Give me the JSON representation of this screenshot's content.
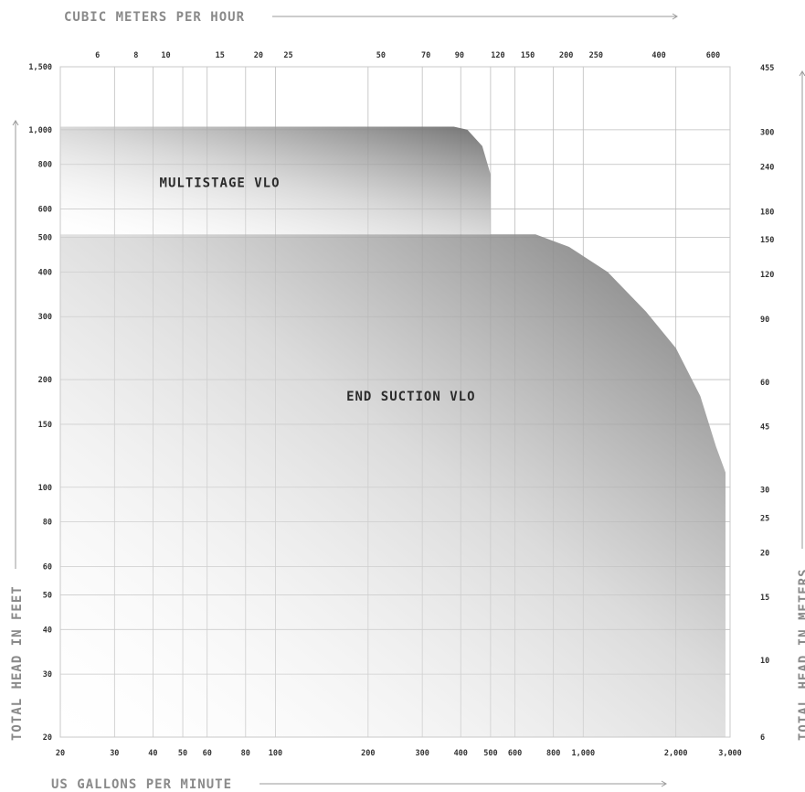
{
  "chart_data": {
    "type": "area",
    "x_scale": "log",
    "y_scale": "log",
    "grid": true,
    "axes": {
      "bottom": {
        "label": "US GALLONS PER MINUTE",
        "ticks": [
          {
            "value": 20,
            "label": "20"
          },
          {
            "value": 30,
            "label": "30"
          },
          {
            "value": 40,
            "label": "40"
          },
          {
            "value": 50,
            "label": "50"
          },
          {
            "value": 60,
            "label": "60"
          },
          {
            "value": 80,
            "label": "80"
          },
          {
            "value": 100,
            "label": "100"
          },
          {
            "value": 200,
            "label": "200"
          },
          {
            "value": 300,
            "label": "300"
          },
          {
            "value": 400,
            "label": "400"
          },
          {
            "value": 500,
            "label": "500"
          },
          {
            "value": 600,
            "label": "600"
          },
          {
            "value": 800,
            "label": "800"
          },
          {
            "value": 1000,
            "label": "1,000"
          },
          {
            "value": 2000,
            "label": "2,000"
          },
          {
            "value": 3000,
            "label": "3,000"
          }
        ]
      },
      "top": {
        "label": "CUBIC METERS PER HOUR",
        "ticks": [
          {
            "value": 6,
            "label": "6"
          },
          {
            "value": 8,
            "label": "8"
          },
          {
            "value": 10,
            "label": "10"
          },
          {
            "value": 15,
            "label": "15"
          },
          {
            "value": 20,
            "label": "20"
          },
          {
            "value": 25,
            "label": "25"
          },
          {
            "value": 50,
            "label": "50"
          },
          {
            "value": 70,
            "label": "70"
          },
          {
            "value": 90,
            "label": "90"
          },
          {
            "value": 120,
            "label": "120"
          },
          {
            "value": 150,
            "label": "150"
          },
          {
            "value": 200,
            "label": "200"
          },
          {
            "value": 250,
            "label": "250"
          },
          {
            "value": 400,
            "label": "400"
          },
          {
            "value": 600,
            "label": "600"
          }
        ]
      },
      "left": {
        "label": "TOTAL HEAD IN FEET",
        "ticks": [
          {
            "value": 20,
            "label": "20"
          },
          {
            "value": 30,
            "label": "30"
          },
          {
            "value": 40,
            "label": "40"
          },
          {
            "value": 50,
            "label": "50"
          },
          {
            "value": 60,
            "label": "60"
          },
          {
            "value": 80,
            "label": "80"
          },
          {
            "value": 100,
            "label": "100"
          },
          {
            "value": 150,
            "label": "150"
          },
          {
            "value": 200,
            "label": "200"
          },
          {
            "value": 300,
            "label": "300"
          },
          {
            "value": 400,
            "label": "400"
          },
          {
            "value": 500,
            "label": "500"
          },
          {
            "value": 600,
            "label": "600"
          },
          {
            "value": 800,
            "label": "800"
          },
          {
            "value": 1000,
            "label": "1,000"
          },
          {
            "value": 1500,
            "label": "1,500"
          }
        ]
      },
      "right": {
        "label": "TOTAL HEAD IN METERS",
        "ticks": [
          {
            "value": 6,
            "label": "6"
          },
          {
            "value": 10,
            "label": "10"
          },
          {
            "value": 15,
            "label": "15"
          },
          {
            "value": 20,
            "label": "20"
          },
          {
            "value": 25,
            "label": "25"
          },
          {
            "value": 30,
            "label": "30"
          },
          {
            "value": 45,
            "label": "45"
          },
          {
            "value": 60,
            "label": "60"
          },
          {
            "value": 90,
            "label": "90"
          },
          {
            "value": 120,
            "label": "120"
          },
          {
            "value": 150,
            "label": "150"
          },
          {
            "value": 180,
            "label": "180"
          },
          {
            "value": 240,
            "label": "240"
          },
          {
            "value": 300,
            "label": "300"
          },
          {
            "value": 455,
            "label": "455"
          }
        ]
      }
    },
    "gridlines_x_gpm": [
      30,
      40,
      50,
      60,
      80,
      100,
      200,
      300,
      400,
      500,
      600,
      800,
      1000,
      2000
    ],
    "gridlines_y_ft": [
      30,
      40,
      50,
      60,
      80,
      100,
      150,
      200,
      300,
      400,
      500,
      600,
      800,
      1000
    ],
    "xlim": [
      20,
      3000
    ],
    "ylim": [
      20,
      1500
    ],
    "regions": [
      {
        "name": "MULTISTAGE VLO",
        "outline_gpm_ft": [
          [
            20,
            1020
          ],
          [
            380,
            1020
          ],
          [
            420,
            1000
          ],
          [
            470,
            900
          ],
          [
            500,
            750
          ],
          [
            500,
            510
          ],
          [
            20,
            510
          ]
        ]
      },
      {
        "name": "END SUCTION VLO",
        "outline_gpm_ft": [
          [
            20,
            510
          ],
          [
            700,
            510
          ],
          [
            900,
            470
          ],
          [
            1200,
            400
          ],
          [
            1600,
            310
          ],
          [
            2000,
            245
          ],
          [
            2400,
            180
          ],
          [
            2700,
            130
          ],
          [
            2900,
            110
          ],
          [
            2900,
            20
          ],
          [
            20,
            20
          ]
        ]
      }
    ]
  }
}
